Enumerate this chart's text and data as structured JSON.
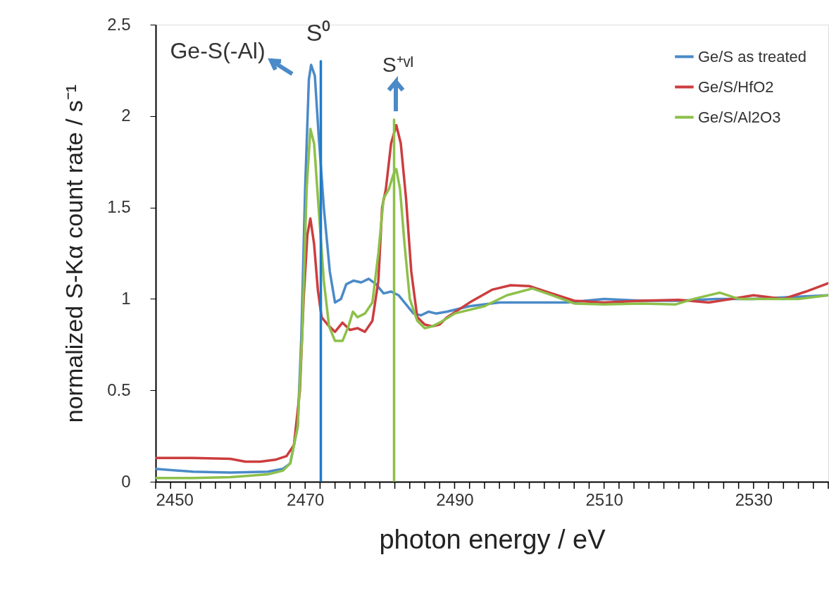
{
  "chart_data": {
    "type": "line",
    "xlabel": "photon energy  / eV",
    "ylabel": "normalized S-Kα count rate  / s⁻¹",
    "xlim": [
      2450,
      2540
    ],
    "ylim": [
      0,
      2.5
    ],
    "xticks": [
      2450,
      {
        "value": 2452,
        "label": null
      },
      {
        "value": 2454,
        "label": null
      },
      {
        "value": 2456,
        "label": null
      },
      {
        "value": 2458,
        "label": null
      },
      {
        "value": 2460,
        "label": null
      },
      {
        "value": 2462,
        "label": null
      },
      {
        "value": 2464,
        "label": null
      },
      {
        "value": 2466,
        "label": null
      },
      {
        "value": 2468,
        "label": null
      },
      2470,
      {
        "value": 2472,
        "label": null
      },
      {
        "value": 2474,
        "label": null
      },
      {
        "value": 2476,
        "label": null
      },
      {
        "value": 2478,
        "label": null
      },
      {
        "value": 2480,
        "label": null
      },
      {
        "value": 2482,
        "label": null
      },
      {
        "value": 2484,
        "label": null
      },
      {
        "value": 2486,
        "label": null
      },
      {
        "value": 2488,
        "label": null
      },
      2490,
      {
        "value": 2492,
        "label": null
      },
      {
        "value": 2494,
        "label": null
      },
      {
        "value": 2496,
        "label": null
      },
      {
        "value": 2498,
        "label": null
      },
      {
        "value": 2500,
        "label": null
      },
      {
        "value": 2502,
        "label": null
      },
      {
        "value": 2504,
        "label": null
      },
      {
        "value": 2506,
        "label": null
      },
      {
        "value": 2508,
        "label": null
      },
      2510,
      {
        "value": 2512,
        "label": null
      },
      {
        "value": 2514,
        "label": null
      },
      {
        "value": 2516,
        "label": null
      },
      {
        "value": 2518,
        "label": null
      },
      {
        "value": 2520,
        "label": null
      },
      {
        "value": 2522,
        "label": null
      },
      {
        "value": 2524,
        "label": null
      },
      {
        "value": 2526,
        "label": null
      },
      {
        "value": 2528,
        "label": null
      },
      2530,
      {
        "value": 2532,
        "label": null
      },
      {
        "value": 2534,
        "label": null
      },
      {
        "value": 2536,
        "label": null
      },
      {
        "value": 2538,
        "label": null
      },
      {
        "value": 2540,
        "label": null
      }
    ],
    "yticks": [
      0,
      0.5,
      1,
      1.5,
      2,
      2.5
    ],
    "grid": false,
    "legend": "top right",
    "marker": "none",
    "line_style": "solid",
    "annotations": [
      "Ge-S(-Al)",
      "S⁰",
      "S⁺ᵛᴵ"
    ],
    "series": [
      {
        "name": "Ge/S as treated",
        "color": "#4a8ac8",
        "x": [
          2450,
          2455,
          2460,
          2465,
          2467,
          2468,
          2469,
          2469.5,
          2470,
          2470.5,
          2470.8,
          2471.3,
          2471.8,
          2472.5,
          2473.3,
          2474,
          2474.8,
          2475.5,
          2476.5,
          2477.5,
          2478.5,
          2479.5,
          2480.5,
          2481.5,
          2482.5,
          2483.5,
          2484.5,
          2485.5,
          2486.5,
          2487.5,
          2489,
          2492,
          2496,
          2499,
          2505,
          2510,
          2515,
          2520,
          2525,
          2530,
          2535,
          2540
        ],
        "values": [
          0.07,
          0.055,
          0.05,
          0.055,
          0.07,
          0.1,
          0.3,
          0.8,
          1.6,
          2.2,
          2.28,
          2.22,
          1.9,
          1.5,
          1.15,
          0.98,
          1.0,
          1.08,
          1.1,
          1.09,
          1.11,
          1.08,
          1.03,
          1.04,
          1.02,
          0.97,
          0.92,
          0.91,
          0.93,
          0.92,
          0.93,
          0.96,
          0.98,
          0.98,
          0.98,
          1.0,
          0.99,
          0.99,
          1.0,
          1.0,
          1.01,
          1.02
        ]
      },
      {
        "name": "Ge/S/HfO2",
        "color": "#cc3d3f",
        "x": [
          2450,
          2455,
          2460,
          2462,
          2464,
          2466,
          2467.5,
          2468.5,
          2469.3,
          2469.8,
          2470.3,
          2470.7,
          2471.2,
          2471.7,
          2472.2,
          2473,
          2474,
          2475,
          2476,
          2477,
          2478,
          2479,
          2479.8,
          2480.3,
          2480.8,
          2481.5,
          2482.2,
          2482.8,
          2483.5,
          2484.2,
          2485,
          2486,
          2487,
          2488,
          2489,
          2492,
          2495,
          2497.5,
          2500,
          2503,
          2506,
          2510,
          2515,
          2520,
          2524,
          2527,
          2530,
          2534,
          2537,
          2540
        ],
        "values": [
          0.13,
          0.13,
          0.125,
          0.11,
          0.11,
          0.12,
          0.14,
          0.2,
          0.5,
          1.0,
          1.35,
          1.44,
          1.3,
          1.05,
          0.9,
          0.86,
          0.82,
          0.87,
          0.83,
          0.84,
          0.82,
          0.88,
          1.1,
          1.5,
          1.6,
          1.85,
          1.95,
          1.85,
          1.55,
          1.15,
          0.9,
          0.86,
          0.85,
          0.86,
          0.9,
          0.98,
          1.05,
          1.075,
          1.07,
          1.03,
          0.99,
          0.98,
          0.99,
          0.995,
          0.98,
          1.0,
          1.02,
          1.0,
          1.04,
          1.086
        ]
      },
      {
        "name": "Ge/S/Al2O3",
        "color": "#8dc04a",
        "x": [
          2450,
          2455,
          2460,
          2465,
          2467,
          2468,
          2469,
          2469.6,
          2470.2,
          2470.7,
          2471.2,
          2471.8,
          2472.5,
          2473.2,
          2474,
          2475,
          2475.8,
          2476.4,
          2477,
          2478,
          2479,
          2479.8,
          2480.5,
          2481.2,
          2481.8,
          2482.2,
          2482.7,
          2483.3,
          2484,
          2485,
          2486,
          2487,
          2488,
          2490,
          2494,
          2497,
          2500.4,
          2503,
          2506,
          2510,
          2515,
          2519.6,
          2522,
          2525.5,
          2528,
          2532,
          2536,
          2540
        ],
        "values": [
          0.02,
          0.02,
          0.025,
          0.04,
          0.06,
          0.1,
          0.3,
          0.8,
          1.6,
          1.93,
          1.85,
          1.5,
          1.1,
          0.85,
          0.77,
          0.77,
          0.85,
          0.93,
          0.9,
          0.92,
          0.98,
          1.25,
          1.55,
          1.6,
          1.68,
          1.71,
          1.6,
          1.3,
          1.0,
          0.88,
          0.84,
          0.85,
          0.87,
          0.92,
          0.96,
          1.02,
          1.057,
          1.02,
          0.975,
          0.97,
          0.975,
          0.97,
          1.0,
          1.034,
          1.0,
          1.0,
          1.0,
          1.02
        ]
      },
      {
        "color": "#1f7cc8",
        "x": [
          2472.1,
          2472.1
        ],
        "values": [
          0,
          2.3
        ]
      },
      {
        "color": "#8dc04a",
        "x": [
          2481.9,
          2481.9
        ],
        "values": [
          0,
          1.98
        ]
      }
    ]
  }
}
